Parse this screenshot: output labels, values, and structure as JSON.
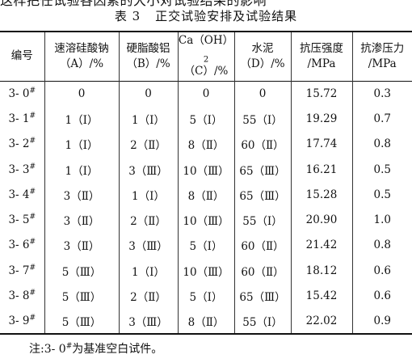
{
  "top_fragment": "这样把任试验各因素的大小对试验结果的影响",
  "caption": {
    "number": "表 3",
    "title": "正交试验安排及试验结果"
  },
  "table": {
    "headers": [
      {
        "line1": "编号",
        "line2": ""
      },
      {
        "line1": "速溶硅酸钠",
        "line2": "（A）/%"
      },
      {
        "line1": "硬脂酸铝",
        "line2": "（B）/%"
      },
      {
        "line1": "Ca（OH）",
        "sub": "2",
        "line2": "（C）/%"
      },
      {
        "line1": "水泥",
        "line2": "（D）/%"
      },
      {
        "line1": "抗压强度",
        "line2": "/MPa"
      },
      {
        "line1": "抗渗压力",
        "line2": "/MPa"
      }
    ],
    "rows": [
      {
        "id": "3- 0",
        "mark": "#",
        "a": "0",
        "b": "0",
        "c": "0",
        "d": "0",
        "strength": "15.72",
        "pressure": "0.3"
      },
      {
        "id": "3- 1",
        "mark": "#",
        "a": "1（Ⅰ）",
        "b": "1（Ⅰ）",
        "c": "5（Ⅰ）",
        "d": "55（Ⅰ）",
        "strength": "19.29",
        "pressure": "0.7"
      },
      {
        "id": "3- 2",
        "mark": "#",
        "a": "1（Ⅰ）",
        "b": "2（Ⅱ）",
        "c": "8（Ⅱ）",
        "d": "60（Ⅱ）",
        "strength": "17.74",
        "pressure": "0.8"
      },
      {
        "id": "3- 3",
        "mark": "#",
        "a": "1（Ⅰ）",
        "b": "3（Ⅲ）",
        "c": "10（Ⅲ）",
        "d": "65（Ⅲ）",
        "strength": "16.21",
        "pressure": "0.5"
      },
      {
        "id": "3- 4",
        "mark": "#",
        "a": "3（Ⅱ）",
        "b": "1（Ⅰ）",
        "c": "8（Ⅱ）",
        "d": "65（Ⅲ）",
        "strength": "15.28",
        "pressure": "0.5"
      },
      {
        "id": "3- 5",
        "mark": "#",
        "a": "3（Ⅱ）",
        "b": "2（Ⅱ）",
        "c": "10（Ⅲ）",
        "d": "55（Ⅰ）",
        "strength": "20.90",
        "pressure": "1.0"
      },
      {
        "id": "3- 6",
        "mark": "#",
        "a": "3（Ⅱ）",
        "b": "3（Ⅲ）",
        "c": "5（Ⅰ）",
        "d": "60（Ⅱ）",
        "strength": "21.42",
        "pressure": "0.8"
      },
      {
        "id": "3- 7",
        "mark": "#",
        "a": "5（Ⅲ）",
        "b": "1（Ⅰ）",
        "c": "10（Ⅲ）",
        "d": "60（Ⅱ）",
        "strength": "18.12",
        "pressure": "0.6"
      },
      {
        "id": "3- 8",
        "mark": "#",
        "a": "5（Ⅲ）",
        "b": "2（Ⅱ）",
        "c": "5（Ⅰ）",
        "d": "65（Ⅲ）",
        "strength": "15.42",
        "pressure": "0.6"
      },
      {
        "id": "3- 9",
        "mark": "#",
        "a": "5（Ⅲ）",
        "b": "3（Ⅲ）",
        "c": "8（Ⅱ）",
        "d": "55（Ⅰ）",
        "strength": "22.02",
        "pressure": "0.9"
      }
    ]
  },
  "note": {
    "prefix": "注:3- 0",
    "mark": "#",
    "suffix": "为基准空白试件。"
  }
}
